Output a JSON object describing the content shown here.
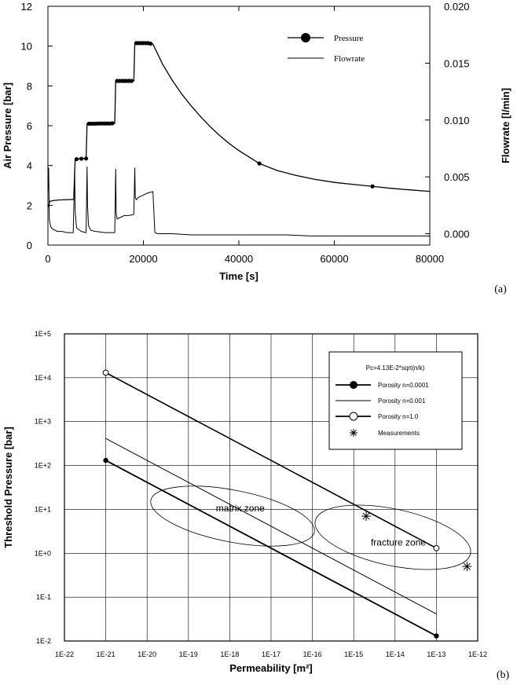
{
  "chart_data": [
    {
      "panel_label": "(a)",
      "type": "line",
      "xlabel": "Time [s]",
      "ylabel": "Air Pressure [bar]",
      "y2label": "Flowrate [l/min]",
      "xlim": [
        0,
        80000
      ],
      "ylim": [
        0,
        12
      ],
      "y2lim": [
        -0.001,
        0.02
      ],
      "x_ticks": [
        "0",
        "20000",
        "40000",
        "60000",
        "80000"
      ],
      "y_ticks": [
        "0",
        "2",
        "4",
        "6",
        "8",
        "10",
        "12"
      ],
      "y2_ticks": [
        "0.000",
        "0.005",
        "0.010",
        "0.015",
        "0.020"
      ],
      "grid": false,
      "legend_position": "top-right",
      "series": [
        {
          "name": "Pressure",
          "axis": "left",
          "style": "line-with-markers",
          "x": [
            0,
            400,
            800,
            1200,
            1600,
            2000,
            2400,
            2800,
            3200,
            3600,
            4000,
            4400,
            4800,
            5200,
            5400,
            5700,
            6000,
            6500,
            7000,
            7500,
            8000,
            8200,
            8500,
            9000,
            9500,
            10000,
            10500,
            11000,
            11500,
            12000,
            12500,
            13000,
            13500,
            14000,
            14200,
            14500,
            15000,
            15500,
            16000,
            16500,
            17000,
            17500,
            18000,
            18200,
            18500,
            19000,
            19500,
            20000,
            20500,
            21000,
            21500,
            22000,
            24000,
            26000,
            28000,
            30000,
            32000,
            34000,
            36000,
            38000,
            40000,
            42000,
            44300,
            48000,
            52000,
            56000,
            60000,
            64000,
            68000,
            72000,
            76000,
            80000
          ],
          "y": [
            1.9,
            2.2,
            2.22,
            2.24,
            2.25,
            2.26,
            2.27,
            2.27,
            2.28,
            2.28,
            2.28,
            2.29,
            2.29,
            2.29,
            2.3,
            4.3,
            4.32,
            4.33,
            4.34,
            4.35,
            4.35,
            6.1,
            6.1,
            6.1,
            6.1,
            6.1,
            6.11,
            6.11,
            6.11,
            6.11,
            6.11,
            6.11,
            6.12,
            6.12,
            8.25,
            8.25,
            8.25,
            8.25,
            8.25,
            8.25,
            8.25,
            8.25,
            8.25,
            10.15,
            10.15,
            10.15,
            10.15,
            10.15,
            10.15,
            10.15,
            10.12,
            10.1,
            9.1,
            8.3,
            7.6,
            7.0,
            6.45,
            5.95,
            5.5,
            5.1,
            4.75,
            4.45,
            4.1,
            3.75,
            3.5,
            3.3,
            3.15,
            3.05,
            2.95,
            2.85,
            2.77,
            2.7
          ]
        },
        {
          "name": "Flowrate",
          "axis": "right",
          "style": "line",
          "x": [
            0,
            150,
            300,
            600,
            1000,
            2000,
            3000,
            4000,
            5300,
            5600,
            5700,
            6000,
            7000,
            8000,
            8200,
            8300,
            8500,
            9000,
            10000,
            12000,
            14000,
            14200,
            14300,
            14500,
            15000,
            16000,
            17000,
            18000,
            18200,
            18300,
            18500,
            19000,
            20000,
            21000,
            22000,
            22400,
            23000,
            26000,
            30000,
            35000,
            40000,
            45000,
            50000,
            55000,
            60000,
            65000,
            70000,
            75000,
            80000
          ],
          "y": [
            0.0035,
            0.0058,
            0.0012,
            0.0006,
            0.0004,
            0.0002,
            0.0002,
            0.0001,
            0.0001,
            0.0057,
            0.002,
            0.0005,
            0.0002,
            0.0001,
            0.0059,
            0.0025,
            0.0007,
            0.0003,
            0.0002,
            0.0001,
            0.0001,
            0.0057,
            0.0018,
            0.0013,
            0.0014,
            0.0016,
            0.0016,
            0.0017,
            0.0058,
            0.0032,
            0.003,
            0.0032,
            0.0034,
            0.0036,
            0.0037,
            0.0001,
            0.0,
            0.0,
            -0.0001,
            -0.0001,
            -0.0001,
            -0.0001,
            -0.0001,
            -0.0002,
            -0.0002,
            -0.0002,
            -0.0002,
            -0.0002,
            -0.0002
          ]
        }
      ],
      "pressure_markers_x": [
        6000,
        7000,
        8000,
        8600,
        9000,
        9500,
        10000,
        10500,
        11000,
        11500,
        12000,
        12500,
        13000,
        13500,
        14500,
        15000,
        15500,
        16000,
        16500,
        17000,
        17500,
        18500,
        19000,
        19500,
        20000,
        20500,
        21000,
        21500,
        44300,
        68000
      ]
    },
    {
      "panel_label": "(b)",
      "type": "line",
      "xlabel": "Permeability [m²]",
      "ylabel": "Threshold Pressure [bar]",
      "x_scale": "log",
      "y_scale": "log",
      "xlim_exp": [
        -22,
        -12
      ],
      "ylim_exp": [
        -2,
        5
      ],
      "x_ticks": [
        "1E-22",
        "1E-21",
        "1E-20",
        "1E-19",
        "1E-18",
        "1E-17",
        "1E-16",
        "1E-15",
        "1E-14",
        "1E-13",
        "1E-12"
      ],
      "y_ticks": [
        "1E-2",
        "1E-1",
        "1E+0",
        "1E+1",
        "1E+2",
        "1E+3",
        "1E+4",
        "1E+5"
      ],
      "grid": true,
      "legend_position": "top-right",
      "legend_title": "Pc=4.13E-2*sqrt(n/k)",
      "series": [
        {
          "name": "Porosity n=0.0001",
          "style": "line-filled-circle-ends",
          "k": [
            1e-21,
            1e-13
          ],
          "pc": [
            130.6,
            0.01306
          ]
        },
        {
          "name": "Porosity n=0.001",
          "style": "line",
          "k": [
            1e-21,
            1e-13
          ],
          "pc": [
            413,
            0.0413
          ]
        },
        {
          "name": "Porosity n=1.0",
          "style": "line-open-circle-ends",
          "k": [
            1e-21,
            1e-13
          ],
          "pc": [
            13060,
            1.306
          ]
        },
        {
          "name": "Measurements",
          "style": "asterisk",
          "k": [
            2e-15,
            5.5e-13
          ],
          "pc": [
            7,
            0.5
          ]
        }
      ],
      "annotations": [
        {
          "text": "matrix zone",
          "k": 1.8e-18,
          "pc": 9
        },
        {
          "text": "fracture zone",
          "k": 1.2e-14,
          "pc": 1.5
        }
      ]
    }
  ]
}
